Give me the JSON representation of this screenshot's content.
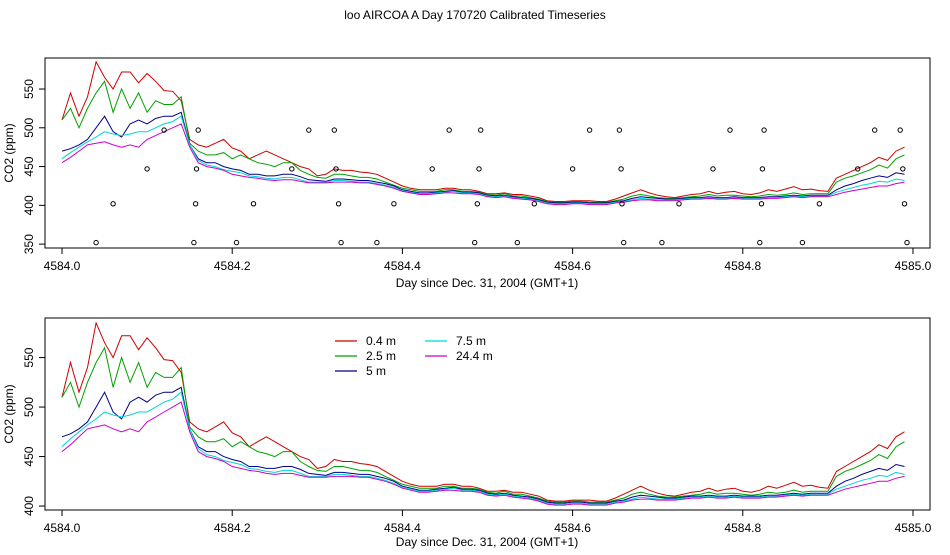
{
  "figure_title": "loo AIRCOA A  Day 170720  Calibrated Timeseries",
  "colors": {
    "0.4 m": "#cc0000",
    "2.5 m": "#00a000",
    "5 m": "#00008b",
    "7.5 m": "#00d5d5",
    "24.4 m": "#cc00cc",
    "points": "#000000"
  },
  "chart_data": [
    {
      "type": "line",
      "xlabel": "Day since Dec. 31, 2004 (GMT+1)",
      "ylabel": "CO2 (ppm)",
      "xlim": [
        4583.98,
        4585.02
      ],
      "ylim": [
        345,
        590
      ],
      "xticks": [
        "4584.0",
        "4584.2",
        "4584.4",
        "4584.6",
        "4584.8",
        "4585.0"
      ],
      "yticks": [
        "350",
        "400",
        "450",
        "500",
        "550"
      ],
      "x": [
        4584.0,
        4584.01,
        4584.02,
        4584.03,
        4584.04,
        4584.05,
        4584.06,
        4584.07,
        4584.08,
        4584.09,
        4584.1,
        4584.11,
        4584.12,
        4584.13,
        4584.14,
        4584.15,
        4584.16,
        4584.17,
        4584.18,
        4584.19,
        4584.2,
        4584.21,
        4584.22,
        4584.23,
        4584.24,
        4584.25,
        4584.26,
        4584.27,
        4584.28,
        4584.29,
        4584.3,
        4584.31,
        4584.32,
        4584.33,
        4584.34,
        4584.35,
        4584.36,
        4584.37,
        4584.38,
        4584.39,
        4584.4,
        4584.41,
        4584.42,
        4584.43,
        4584.44,
        4584.45,
        4584.46,
        4584.47,
        4584.48,
        4584.49,
        4584.5,
        4584.51,
        4584.52,
        4584.53,
        4584.54,
        4584.55,
        4584.56,
        4584.57,
        4584.58,
        4584.59,
        4584.6,
        4584.61,
        4584.62,
        4584.63,
        4584.64,
        4584.65,
        4584.66,
        4584.67,
        4584.68,
        4584.69,
        4584.7,
        4584.71,
        4584.72,
        4584.73,
        4584.74,
        4584.75,
        4584.76,
        4584.77,
        4584.78,
        4584.79,
        4584.8,
        4584.81,
        4584.82,
        4584.83,
        4584.84,
        4584.85,
        4584.86,
        4584.87,
        4584.88,
        4584.89,
        4584.9,
        4584.91,
        4584.92,
        4584.93,
        4584.94,
        4584.95,
        4584.96,
        4584.97,
        4584.98,
        4584.99
      ],
      "series": [
        {
          "name": "0.4 m",
          "values": [
            510,
            545,
            515,
            540,
            585,
            565,
            550,
            572,
            572,
            558,
            570,
            560,
            548,
            547,
            535,
            485,
            478,
            475,
            480,
            485,
            474,
            470,
            460,
            465,
            470,
            465,
            460,
            455,
            450,
            447,
            438,
            440,
            447,
            445,
            445,
            443,
            442,
            440,
            435,
            430,
            425,
            422,
            420,
            420,
            420,
            422,
            422,
            420,
            420,
            418,
            415,
            415,
            416,
            414,
            414,
            412,
            410,
            406,
            405,
            405,
            406,
            406,
            406,
            405,
            405,
            408,
            412,
            416,
            420,
            416,
            413,
            411,
            410,
            412,
            414,
            415,
            418,
            415,
            417,
            418,
            415,
            414,
            416,
            420,
            418,
            421,
            424,
            420,
            421,
            419,
            418,
            435,
            440,
            445,
            450,
            455,
            462,
            458,
            470,
            475
          ]
        },
        {
          "name": "2.5 m",
          "values": [
            510,
            525,
            500,
            525,
            545,
            560,
            520,
            550,
            525,
            545,
            520,
            535,
            530,
            530,
            540,
            480,
            470,
            465,
            465,
            468,
            460,
            465,
            460,
            455,
            453,
            450,
            455,
            455,
            445,
            440,
            436,
            435,
            440,
            440,
            438,
            436,
            436,
            434,
            430,
            426,
            422,
            420,
            418,
            418,
            418,
            420,
            420,
            418,
            418,
            417,
            414,
            413,
            415,
            412,
            412,
            410,
            408,
            405,
            404,
            404,
            405,
            405,
            404,
            404,
            404,
            406,
            408,
            412,
            414,
            412,
            410,
            409,
            409,
            410,
            411,
            412,
            414,
            412,
            413,
            413,
            412,
            411,
            412,
            414,
            413,
            414,
            416,
            414,
            415,
            415,
            415,
            430,
            435,
            438,
            442,
            446,
            452,
            448,
            460,
            465
          ]
        },
        {
          "name": "5 m",
          "values": [
            470,
            473,
            478,
            485,
            500,
            515,
            495,
            488,
            505,
            510,
            505,
            512,
            515,
            515,
            520,
            478,
            460,
            455,
            455,
            450,
            447,
            445,
            440,
            440,
            438,
            438,
            440,
            440,
            437,
            433,
            432,
            431,
            434,
            434,
            433,
            432,
            432,
            430,
            428,
            425,
            420,
            418,
            416,
            416,
            417,
            418,
            419,
            417,
            417,
            416,
            413,
            412,
            413,
            411,
            410,
            409,
            407,
            404,
            403,
            403,
            404,
            404,
            403,
            403,
            403,
            405,
            406,
            409,
            411,
            410,
            409,
            408,
            408,
            409,
            410,
            410,
            411,
            410,
            410,
            411,
            410,
            410,
            410,
            411,
            411,
            412,
            413,
            412,
            413,
            413,
            413,
            420,
            425,
            428,
            432,
            435,
            438,
            436,
            442,
            440
          ]
        },
        {
          "name": "7.5 m",
          "values": [
            460,
            468,
            475,
            482,
            488,
            495,
            492,
            490,
            492,
            495,
            495,
            500,
            505,
            508,
            515,
            478,
            458,
            452,
            450,
            446,
            444,
            442,
            438,
            437,
            435,
            434,
            436,
            436,
            433,
            430,
            430,
            430,
            432,
            432,
            431,
            430,
            430,
            428,
            426,
            423,
            419,
            417,
            415,
            415,
            416,
            417,
            418,
            416,
            416,
            415,
            412,
            411,
            412,
            410,
            409,
            408,
            406,
            403,
            402,
            402,
            403,
            403,
            402,
            402,
            402,
            404,
            405,
            407,
            409,
            408,
            407,
            407,
            407,
            408,
            409,
            409,
            410,
            409,
            409,
            410,
            409,
            409,
            409,
            410,
            410,
            411,
            412,
            411,
            412,
            412,
            412,
            417,
            420,
            423,
            426,
            428,
            431,
            430,
            434,
            432
          ]
        },
        {
          "name": "24.4 m",
          "values": [
            455,
            462,
            470,
            478,
            480,
            482,
            478,
            475,
            478,
            475,
            485,
            490,
            495,
            500,
            505,
            475,
            455,
            450,
            448,
            445,
            440,
            438,
            436,
            435,
            433,
            432,
            433,
            433,
            431,
            429,
            429,
            429,
            430,
            430,
            430,
            429,
            429,
            427,
            425,
            422,
            418,
            416,
            414,
            414,
            415,
            416,
            416,
            415,
            415,
            414,
            411,
            410,
            411,
            409,
            408,
            407,
            405,
            402,
            401,
            401,
            402,
            402,
            401,
            401,
            401,
            403,
            404,
            406,
            407,
            407,
            406,
            406,
            406,
            407,
            408,
            408,
            409,
            408,
            408,
            409,
            408,
            408,
            408,
            409,
            409,
            410,
            411,
            410,
            411,
            411,
            411,
            414,
            417,
            419,
            421,
            423,
            425,
            425,
            428,
            430
          ]
        }
      ],
      "points": [
        {
          "x": 4584.04,
          "y": 352
        },
        {
          "x": 4584.06,
          "y": 402
        },
        {
          "x": 4584.1,
          "y": 447
        },
        {
          "x": 4584.12,
          "y": 497
        },
        {
          "x": 4584.155,
          "y": 352
        },
        {
          "x": 4584.157,
          "y": 402
        },
        {
          "x": 4584.158,
          "y": 447
        },
        {
          "x": 4584.16,
          "y": 497
        },
        {
          "x": 4584.205,
          "y": 352
        },
        {
          "x": 4584.225,
          "y": 402
        },
        {
          "x": 4584.27,
          "y": 447
        },
        {
          "x": 4584.29,
          "y": 497
        },
        {
          "x": 4584.32,
          "y": 497
        },
        {
          "x": 4584.322,
          "y": 447
        },
        {
          "x": 4584.325,
          "y": 402
        },
        {
          "x": 4584.328,
          "y": 352
        },
        {
          "x": 4584.37,
          "y": 352
        },
        {
          "x": 4584.39,
          "y": 402
        },
        {
          "x": 4584.435,
          "y": 447
        },
        {
          "x": 4584.455,
          "y": 497
        },
        {
          "x": 4584.485,
          "y": 352
        },
        {
          "x": 4584.488,
          "y": 402
        },
        {
          "x": 4584.49,
          "y": 447
        },
        {
          "x": 4584.492,
          "y": 497
        },
        {
          "x": 4584.535,
          "y": 352
        },
        {
          "x": 4584.555,
          "y": 402
        },
        {
          "x": 4584.6,
          "y": 447
        },
        {
          "x": 4584.62,
          "y": 497
        },
        {
          "x": 4584.655,
          "y": 497
        },
        {
          "x": 4584.657,
          "y": 447
        },
        {
          "x": 4584.658,
          "y": 402
        },
        {
          "x": 4584.66,
          "y": 352
        },
        {
          "x": 4584.705,
          "y": 352
        },
        {
          "x": 4584.725,
          "y": 402
        },
        {
          "x": 4584.765,
          "y": 447
        },
        {
          "x": 4584.785,
          "y": 497
        },
        {
          "x": 4584.82,
          "y": 352
        },
        {
          "x": 4584.822,
          "y": 402
        },
        {
          "x": 4584.823,
          "y": 447
        },
        {
          "x": 4584.825,
          "y": 497
        },
        {
          "x": 4584.87,
          "y": 352
        },
        {
          "x": 4584.89,
          "y": 402
        },
        {
          "x": 4584.935,
          "y": 447
        },
        {
          "x": 4584.955,
          "y": 497
        },
        {
          "x": 4584.985,
          "y": 497
        },
        {
          "x": 4584.988,
          "y": 447
        },
        {
          "x": 4584.99,
          "y": 402
        },
        {
          "x": 4584.993,
          "y": 352
        }
      ],
      "grid": false,
      "legend": null
    },
    {
      "type": "line",
      "xlabel": "Day since Dec. 31, 2004 (GMT+1)",
      "ylabel": "CO2 (ppm)",
      "xlim": [
        4583.98,
        4585.02
      ],
      "ylim": [
        396,
        590
      ],
      "xticks": [
        "4584.0",
        "4584.2",
        "4584.4",
        "4584.6",
        "4584.8",
        "4585.0"
      ],
      "yticks": [
        "400",
        "450",
        "500",
        "550"
      ],
      "same_series_as_panel": 0,
      "grid": false,
      "legend": {
        "position": "top-left",
        "entries": [
          "0.4 m",
          "2.5 m",
          "5 m",
          "7.5 m",
          "24.4 m"
        ]
      }
    }
  ]
}
